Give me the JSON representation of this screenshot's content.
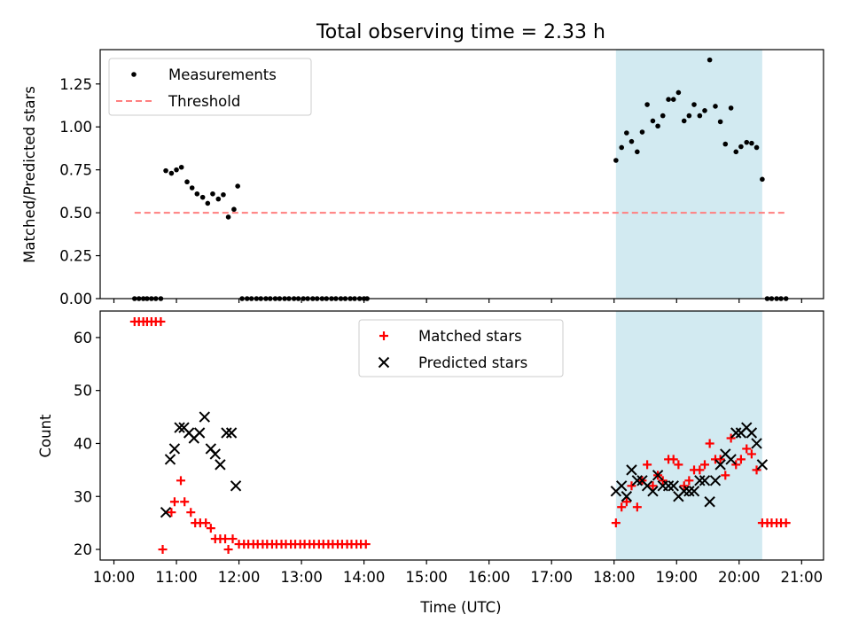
{
  "chart_data": {
    "title": "Total observing time = 2.33 h",
    "xlabel": "Time (UTC)",
    "type": "scatter",
    "x_range": [
      "10:00",
      "21:00"
    ],
    "xlim_hours": [
      9.78,
      21.35
    ],
    "x_ticks": [
      "10:00",
      "11:00",
      "12:00",
      "13:00",
      "14:00",
      "15:00",
      "16:00",
      "17:00",
      "18:00",
      "19:00",
      "20:00",
      "21:00"
    ],
    "shaded_interval": {
      "start": 18.03,
      "end": 20.37,
      "color": "#add8e6"
    },
    "colors": {
      "measurements": "#000000",
      "threshold": "#ff7f7f",
      "matched": "#ff0000",
      "predicted": "#000000",
      "shade": "#add8e6"
    },
    "panels": [
      {
        "ylabel": "Matched/Predicted stars",
        "ylim": [
          0,
          1.45
        ],
        "y_ticks": [
          "0.00",
          "0.25",
          "0.50",
          "0.75",
          "1.00",
          "1.25"
        ],
        "legend": {
          "placement": "upper left",
          "entries": [
            "Measurements",
            "Threshold"
          ]
        },
        "series": [
          {
            "name": "Measurements",
            "type": "scatter",
            "marker": "dot",
            "color": "#000000",
            "points": [
              [
                10.33,
                0
              ],
              [
                10.4,
                0
              ],
              [
                10.47,
                0
              ],
              [
                10.53,
                0
              ],
              [
                10.6,
                0
              ],
              [
                10.67,
                0
              ],
              [
                10.75,
                0
              ],
              [
                10.83,
                0.745
              ],
              [
                10.92,
                0.73
              ],
              [
                11.0,
                0.75
              ],
              [
                11.08,
                0.765
              ],
              [
                11.17,
                0.68
              ],
              [
                11.25,
                0.645
              ],
              [
                11.33,
                0.61
              ],
              [
                11.42,
                0.59
              ],
              [
                11.5,
                0.555
              ],
              [
                11.58,
                0.61
              ],
              [
                11.67,
                0.58
              ],
              [
                11.75,
                0.605
              ],
              [
                11.83,
                0.475
              ],
              [
                11.92,
                0.52
              ],
              [
                11.98,
                0.655
              ],
              [
                12.05,
                0
              ],
              [
                12.13,
                0
              ],
              [
                12.2,
                0
              ],
              [
                12.28,
                0
              ],
              [
                12.35,
                0
              ],
              [
                12.43,
                0
              ],
              [
                12.5,
                0
              ],
              [
                12.58,
                0
              ],
              [
                12.65,
                0
              ],
              [
                12.73,
                0
              ],
              [
                12.8,
                0
              ],
              [
                12.88,
                0
              ],
              [
                12.95,
                0
              ],
              [
                13.03,
                0
              ],
              [
                13.1,
                0
              ],
              [
                13.18,
                0
              ],
              [
                13.25,
                0
              ],
              [
                13.33,
                0
              ],
              [
                13.4,
                0
              ],
              [
                13.48,
                0
              ],
              [
                13.55,
                0
              ],
              [
                13.63,
                0
              ],
              [
                13.7,
                0
              ],
              [
                13.78,
                0
              ],
              [
                13.85,
                0
              ],
              [
                13.93,
                0
              ],
              [
                14.0,
                0
              ],
              [
                14.05,
                0
              ],
              [
                18.03,
                0.805
              ],
              [
                18.12,
                0.88
              ],
              [
                18.2,
                0.965
              ],
              [
                18.28,
                0.915
              ],
              [
                18.37,
                0.855
              ],
              [
                18.45,
                0.97
              ],
              [
                18.53,
                1.13
              ],
              [
                18.62,
                1.035
              ],
              [
                18.7,
                1.005
              ],
              [
                18.78,
                1.065
              ],
              [
                18.87,
                1.16
              ],
              [
                18.95,
                1.16
              ],
              [
                19.03,
                1.2
              ],
              [
                19.12,
                1.035
              ],
              [
                19.2,
                1.065
              ],
              [
                19.28,
                1.13
              ],
              [
                19.37,
                1.065
              ],
              [
                19.45,
                1.095
              ],
              [
                19.53,
                1.39
              ],
              [
                19.62,
                1.12
              ],
              [
                19.7,
                1.03
              ],
              [
                19.78,
                0.9
              ],
              [
                19.87,
                1.11
              ],
              [
                19.95,
                0.855
              ],
              [
                20.03,
                0.885
              ],
              [
                20.12,
                0.91
              ],
              [
                20.2,
                0.905
              ],
              [
                20.28,
                0.88
              ],
              [
                20.37,
                0.695
              ],
              [
                20.45,
                0
              ],
              [
                20.52,
                0
              ],
              [
                20.6,
                0
              ],
              [
                20.67,
                0
              ],
              [
                20.75,
                0
              ]
            ]
          },
          {
            "name": "Threshold",
            "type": "line",
            "style": "dashed",
            "color": "#ff7f7f",
            "points": [
              [
                10.33,
                0.5
              ],
              [
                20.75,
                0.5
              ]
            ]
          }
        ]
      },
      {
        "ylabel": "Count",
        "ylim": [
          18,
          65
        ],
        "y_ticks": [
          "20",
          "30",
          "40",
          "50",
          "60"
        ],
        "legend": {
          "placement": "upper center",
          "entries": [
            "Matched stars",
            "Predicted stars"
          ]
        },
        "series": [
          {
            "name": "Matched stars",
            "type": "scatter",
            "marker": "plus",
            "color": "#ff0000",
            "points": [
              [
                10.33,
                63
              ],
              [
                10.4,
                63
              ],
              [
                10.47,
                63
              ],
              [
                10.53,
                63
              ],
              [
                10.6,
                63
              ],
              [
                10.67,
                63
              ],
              [
                10.75,
                63
              ],
              [
                10.78,
                20
              ],
              [
                10.92,
                27
              ],
              [
                10.97,
                29
              ],
              [
                11.07,
                33
              ],
              [
                11.13,
                29
              ],
              [
                11.23,
                27
              ],
              [
                11.3,
                25
              ],
              [
                11.38,
                25
              ],
              [
                11.47,
                25
              ],
              [
                11.55,
                24
              ],
              [
                11.62,
                22
              ],
              [
                11.7,
                22
              ],
              [
                11.78,
                22
              ],
              [
                11.83,
                20
              ],
              [
                11.9,
                22
              ],
              [
                12.0,
                21
              ],
              [
                12.08,
                21
              ],
              [
                12.15,
                21
              ],
              [
                12.23,
                21
              ],
              [
                12.3,
                21
              ],
              [
                12.38,
                21
              ],
              [
                12.45,
                21
              ],
              [
                12.53,
                21
              ],
              [
                12.6,
                21
              ],
              [
                12.68,
                21
              ],
              [
                12.75,
                21
              ],
              [
                12.83,
                21
              ],
              [
                12.9,
                21
              ],
              [
                12.98,
                21
              ],
              [
                13.05,
                21
              ],
              [
                13.13,
                21
              ],
              [
                13.2,
                21
              ],
              [
                13.28,
                21
              ],
              [
                13.35,
                21
              ],
              [
                13.43,
                21
              ],
              [
                13.5,
                21
              ],
              [
                13.58,
                21
              ],
              [
                13.65,
                21
              ],
              [
                13.73,
                21
              ],
              [
                13.8,
                21
              ],
              [
                13.88,
                21
              ],
              [
                13.95,
                21
              ],
              [
                14.03,
                21
              ],
              [
                18.03,
                25
              ],
              [
                18.12,
                28
              ],
              [
                18.2,
                29
              ],
              [
                18.28,
                32
              ],
              [
                18.37,
                28
              ],
              [
                18.45,
                33
              ],
              [
                18.53,
                36
              ],
              [
                18.62,
                32
              ],
              [
                18.7,
                34
              ],
              [
                18.78,
                33
              ],
              [
                18.87,
                37
              ],
              [
                18.95,
                37
              ],
              [
                19.03,
                36
              ],
              [
                19.12,
                32
              ],
              [
                19.2,
                33
              ],
              [
                19.28,
                35
              ],
              [
                19.37,
                35
              ],
              [
                19.45,
                36
              ],
              [
                19.53,
                40
              ],
              [
                19.62,
                37
              ],
              [
                19.7,
                37
              ],
              [
                19.78,
                34
              ],
              [
                19.87,
                41
              ],
              [
                19.95,
                36
              ],
              [
                20.03,
                37
              ],
              [
                20.12,
                39
              ],
              [
                20.2,
                38
              ],
              [
                20.28,
                35
              ],
              [
                20.37,
                25
              ],
              [
                20.45,
                25
              ],
              [
                20.52,
                25
              ],
              [
                20.6,
                25
              ],
              [
                20.67,
                25
              ],
              [
                20.75,
                25
              ]
            ]
          },
          {
            "name": "Predicted stars",
            "type": "scatter",
            "marker": "x",
            "color": "#000000",
            "points": [
              [
                10.83,
                27
              ],
              [
                10.9,
                37
              ],
              [
                10.97,
                39
              ],
              [
                11.05,
                43
              ],
              [
                11.12,
                43
              ],
              [
                11.2,
                42
              ],
              [
                11.28,
                41
              ],
              [
                11.37,
                42
              ],
              [
                11.45,
                45
              ],
              [
                11.55,
                39
              ],
              [
                11.62,
                38
              ],
              [
                11.7,
                36
              ],
              [
                11.8,
                42
              ],
              [
                11.88,
                42
              ],
              [
                11.95,
                32
              ],
              [
                18.03,
                31
              ],
              [
                18.12,
                32
              ],
              [
                18.2,
                30
              ],
              [
                18.28,
                35
              ],
              [
                18.37,
                33
              ],
              [
                18.45,
                33
              ],
              [
                18.53,
                32
              ],
              [
                18.62,
                31
              ],
              [
                18.7,
                34
              ],
              [
                18.78,
                32
              ],
              [
                18.87,
                32
              ],
              [
                18.95,
                32
              ],
              [
                19.03,
                30
              ],
              [
                19.12,
                31
              ],
              [
                19.2,
                31
              ],
              [
                19.28,
                31
              ],
              [
                19.37,
                33
              ],
              [
                19.45,
                33
              ],
              [
                19.53,
                29
              ],
              [
                19.62,
                33
              ],
              [
                19.7,
                36
              ],
              [
                19.78,
                38
              ],
              [
                19.87,
                37
              ],
              [
                19.95,
                42
              ],
              [
                20.03,
                42
              ],
              [
                20.12,
                43
              ],
              [
                20.2,
                42
              ],
              [
                20.28,
                40
              ],
              [
                20.37,
                36
              ]
            ]
          }
        ]
      }
    ]
  }
}
